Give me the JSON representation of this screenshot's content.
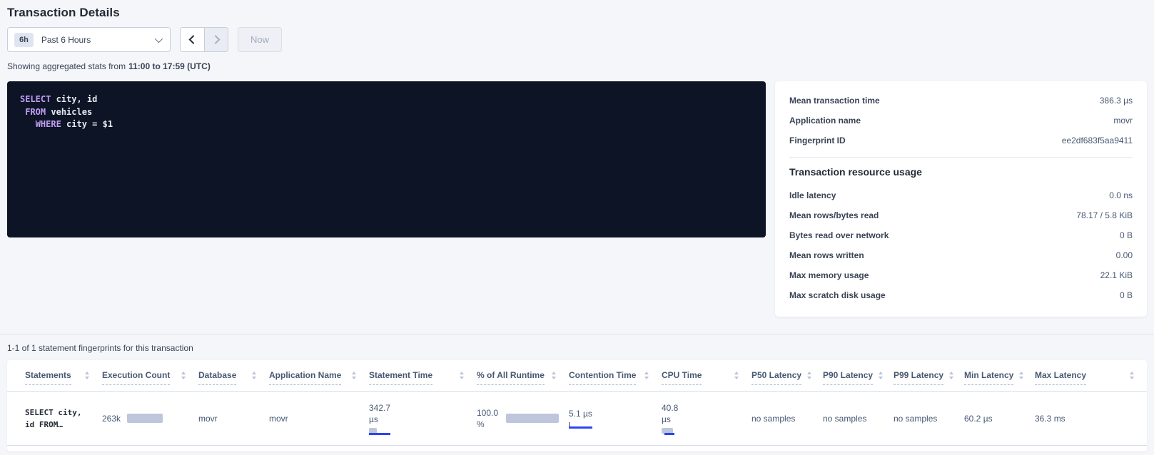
{
  "page": {
    "title": "Transaction Details"
  },
  "toolbar": {
    "range_badge": "6h",
    "range_label": "Past 6 Hours",
    "now_label": "Now"
  },
  "subtitle": {
    "prefix": "Showing aggregated stats from",
    "range_bold": "11:00 to 17:59 (UTC)"
  },
  "sql": {
    "lines": [
      "SELECT city, id",
      " FROM vehicles",
      "   WHERE city = $1"
    ],
    "keywords": [
      "SELECT",
      "FROM",
      "WHERE"
    ]
  },
  "summary": {
    "rows": [
      {
        "label": "Mean transaction time",
        "value": "386.3 µs"
      },
      {
        "label": "Application name",
        "value": "movr"
      },
      {
        "label": "Fingerprint ID",
        "value": "ee2df683f5aa9411"
      }
    ],
    "resource_heading": "Transaction resource usage",
    "resource_rows": [
      {
        "label": "Idle latency",
        "value": "0.0 ns"
      },
      {
        "label": "Mean rows/bytes read",
        "value": "78.17 / 5.8 KiB"
      },
      {
        "label": "Bytes read over network",
        "value": "0 B"
      },
      {
        "label": "Mean rows written",
        "value": "0.00"
      },
      {
        "label": "Max memory usage",
        "value": "22.1 KiB"
      },
      {
        "label": "Max scratch disk usage",
        "value": "0 B"
      }
    ]
  },
  "statements": {
    "caption": "1-1 of 1 statement fingerprints for this transaction",
    "columns": [
      "Statements",
      "Execution Count",
      "Database",
      "Application Name",
      "Statement Time",
      "% of All Runtime",
      "Contention Time",
      "CPU Time",
      "P50 Latency",
      "P90 Latency",
      "P99 Latency",
      "Min Latency",
      "Max Latency"
    ],
    "row": {
      "statement": "SELECT city, id FROM…",
      "execution_count": "263k",
      "database": "movr",
      "application_name": "movr",
      "statement_time_value": "342.7",
      "statement_time_unit": "µs",
      "pct_runtime_value": "100.0",
      "pct_runtime_unit": "%",
      "contention_time": "5.1 µs",
      "cpu_time_value": "40.8",
      "cpu_time_unit": "µs",
      "p50_latency": "no samples",
      "p90_latency": "no samples",
      "p99_latency": "no samples",
      "min_latency": "60.2 µs",
      "max_latency": "36.3 ms"
    }
  },
  "colors": {
    "accent_blue": "#2b46f0",
    "bar_grey": "#bdc6db",
    "sql_background": "#0d1426",
    "sql_keyword": "#c19ef5",
    "page_background": "#f4f6fa"
  }
}
